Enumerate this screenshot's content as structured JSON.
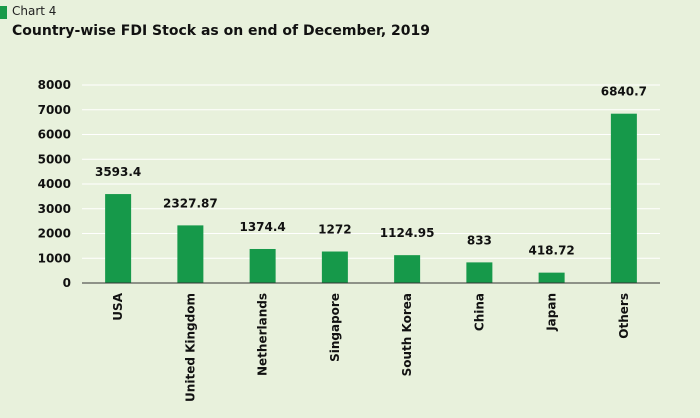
{
  "header": {
    "chart_number": "Chart 4",
    "title": "Country-wise FDI Stock as on end of December, 2019"
  },
  "colors": {
    "bar": "#16994a",
    "background": "#e8f1dc",
    "tag": "#1a9a4a"
  },
  "chart_data": {
    "type": "bar",
    "title": "Country-wise FDI Stock as on end of December, 2019",
    "categories": [
      "USA",
      "United Kingdom",
      "Netherlands",
      "Singapore",
      "South Korea",
      "China",
      "Japan",
      "Others"
    ],
    "values": [
      3593.4,
      2327.87,
      1374.4,
      1272,
      1124.95,
      833,
      418.72,
      6840.7
    ],
    "value_labels": [
      "3593.4",
      "2327.87",
      "1374.4",
      "1272",
      "1124.95",
      "833",
      "418.72",
      "6840.7"
    ],
    "yticks": [
      0,
      1000,
      2000,
      3000,
      4000,
      5000,
      6000,
      7000,
      8000
    ],
    "ylim": [
      0,
      8000
    ],
    "xlabel": "",
    "ylabel": "",
    "grid": true,
    "legend": "none"
  }
}
